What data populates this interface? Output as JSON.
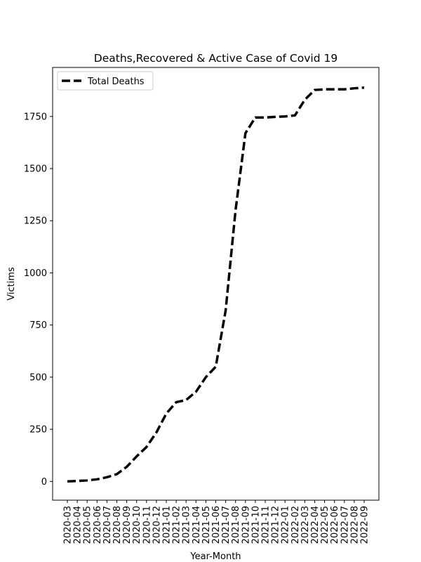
{
  "chart_data": {
    "type": "line",
    "title": "Deaths,Recovered & Active Case of Covid 19",
    "xlabel": "Year-Month",
    "ylabel": "Victims",
    "categories": [
      "2020-03",
      "2020-04",
      "2020-05",
      "2020-06",
      "2020-07",
      "2020-08",
      "2020-09",
      "2020-10",
      "2020-11",
      "2020-12",
      "2021-01",
      "2021-02",
      "2021-03",
      "2021-04",
      "2021-05",
      "2021-06",
      "2021-07",
      "2021-08",
      "2021-09",
      "2021-10",
      "2021-11",
      "2021-12",
      "2022-01",
      "2022-02",
      "2022-03",
      "2022-04",
      "2022-05",
      "2022-06",
      "2022-07",
      "2022-08",
      "2022-09"
    ],
    "series": [
      {
        "name": "Total Deaths",
        "color": "#000000",
        "line_style": "dashed",
        "values": [
          0,
          2,
          5,
          10,
          20,
          35,
          70,
          120,
          165,
          235,
          325,
          380,
          390,
          430,
          500,
          550,
          820,
          1300,
          1670,
          1745,
          1745,
          1748,
          1750,
          1755,
          1830,
          1877,
          1880,
          1880,
          1880,
          1885,
          1888
        ]
      }
    ],
    "ylim": [
      -90,
      1985
    ],
    "yticks": [
      0,
      250,
      500,
      750,
      1000,
      1250,
      1500,
      1750
    ],
    "legend_position": "upper-left",
    "grid": false
  }
}
